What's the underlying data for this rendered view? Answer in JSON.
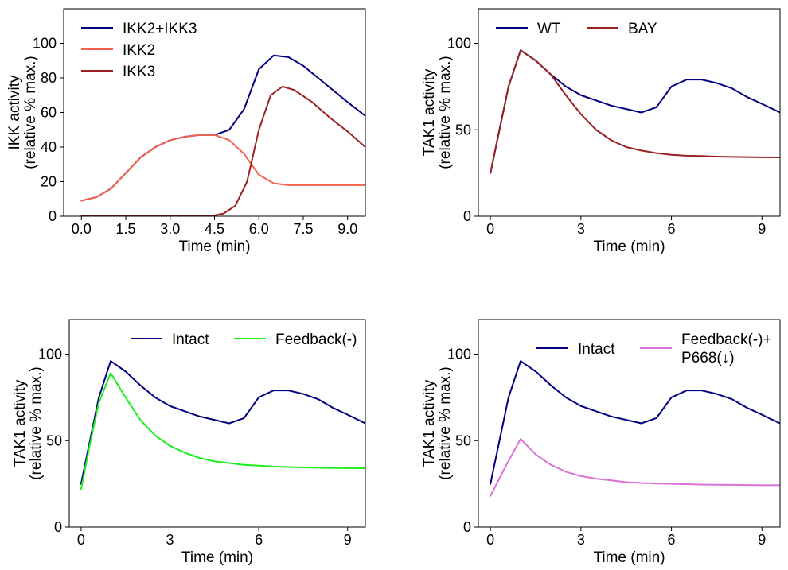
{
  "chart_data": [
    {
      "type": "line",
      "xlabel": "Time (min)",
      "ylabel": [
        "IKK activity",
        "(relative % max.)"
      ],
      "xlim": [
        -0.6,
        9.6
      ],
      "ylim": [
        0,
        120
      ],
      "xticks": [
        0,
        1.5,
        3,
        4.5,
        6,
        7.5,
        9
      ],
      "xtick_labels": [
        "0.0",
        "1.5",
        "3.0",
        "4.5",
        "6.0",
        "7.5",
        "9.0"
      ],
      "yticks": [
        0,
        20,
        40,
        60,
        80,
        100
      ],
      "ytick_labels": [
        "0",
        "20",
        "40",
        "60",
        "80",
        "100"
      ],
      "legend_position": "top-left",
      "legend_layout": "column",
      "series": [
        {
          "name": "IKK2+IKK3",
          "color": "#000080",
          "x": [
            0,
            0.5,
            1,
            1.5,
            2,
            2.5,
            3,
            3.5,
            4,
            4.5,
            5,
            5.5,
            6,
            6.5,
            7,
            7.5,
            8,
            8.5,
            9,
            9.6
          ],
          "y": [
            9,
            11,
            16,
            25,
            34,
            40,
            44,
            46,
            47,
            47,
            50,
            62,
            85,
            93,
            92,
            87,
            80,
            73,
            66,
            58
          ]
        },
        {
          "name": "IKK2",
          "color": "#f4604a",
          "x": [
            0,
            0.5,
            1,
            1.5,
            2,
            2.5,
            3,
            3.5,
            4,
            4.5,
            5,
            5.5,
            6,
            6.5,
            7,
            7.5,
            8,
            8.5,
            9,
            9.6
          ],
          "y": [
            9,
            11,
            16,
            25,
            34,
            40,
            44,
            46,
            47,
            47,
            44,
            36,
            24,
            19,
            18,
            18,
            18,
            18,
            18,
            18
          ]
        },
        {
          "name": "IKK3",
          "color": "#9b2222",
          "x": [
            0,
            0.5,
            1,
            1.5,
            2,
            2.5,
            3,
            3.5,
            4,
            4.5,
            4.8,
            5.2,
            5.6,
            6,
            6.4,
            6.8,
            7.2,
            7.8,
            8.4,
            9,
            9.6
          ],
          "y": [
            0,
            0,
            0,
            0,
            0,
            0,
            0,
            0,
            0,
            0.5,
            1.5,
            6,
            20,
            50,
            70,
            75,
            73,
            66,
            57,
            49,
            40
          ]
        }
      ]
    },
    {
      "type": "line",
      "xlabel": "Time (min)",
      "ylabel": [
        "TAK1 activity",
        "(relative % max.)"
      ],
      "xlim": [
        -0.4,
        9.6
      ],
      "ylim": [
        0,
        120
      ],
      "xticks": [
        0,
        3,
        6,
        9
      ],
      "xtick_labels": [
        "0",
        "3",
        "6",
        "9"
      ],
      "yticks": [
        0,
        50,
        100
      ],
      "ytick_labels": [
        "0",
        "50",
        "100"
      ],
      "legend_position": "top-left",
      "legend_layout": "row",
      "series": [
        {
          "name": "WT",
          "color": "#000080",
          "x": [
            0,
            0.3,
            0.6,
            1,
            1.5,
            2,
            2.5,
            3,
            3.5,
            4,
            4.5,
            5,
            5.5,
            6,
            6.5,
            7,
            7.5,
            8,
            8.5,
            9,
            9.6
          ],
          "y": [
            25,
            50,
            75,
            96,
            90,
            82,
            75,
            70,
            67,
            64,
            62,
            60,
            63,
            75,
            79,
            79,
            77,
            74,
            69,
            65,
            60
          ]
        },
        {
          "name": "BAY",
          "color": "#9b2222",
          "x": [
            0,
            0.3,
            0.6,
            1,
            1.5,
            2,
            2.5,
            3,
            3.5,
            4,
            4.5,
            5,
            5.5,
            6,
            6.5,
            7,
            7.5,
            8,
            8.5,
            9,
            9.6
          ],
          "y": [
            25,
            50,
            75,
            96,
            90,
            82,
            70,
            59,
            50,
            44,
            40,
            38,
            36.5,
            35.5,
            35,
            34.8,
            34.5,
            34.3,
            34.2,
            34.1,
            34
          ]
        }
      ]
    },
    {
      "type": "line",
      "xlabel": "Time (min)",
      "ylabel": [
        "TAK1 activity",
        "(relative % max.)"
      ],
      "xlim": [
        -0.4,
        9.6
      ],
      "ylim": [
        0,
        120
      ],
      "xticks": [
        0,
        3,
        6,
        9
      ],
      "xtick_labels": [
        "0",
        "3",
        "6",
        "9"
      ],
      "yticks": [
        0,
        50,
        100
      ],
      "ytick_labels": [
        "0",
        "50",
        "100"
      ],
      "legend_position": "top-right",
      "legend_layout": "row",
      "series": [
        {
          "name": "Intact",
          "color": "#000080",
          "x": [
            0,
            0.3,
            0.6,
            1,
            1.5,
            2,
            2.5,
            3,
            3.5,
            4,
            4.5,
            5,
            5.5,
            6,
            6.5,
            7,
            7.5,
            8,
            8.5,
            9,
            9.6
          ],
          "y": [
            25,
            50,
            75,
            96,
            90,
            82,
            75,
            70,
            67,
            64,
            62,
            60,
            63,
            75,
            79,
            79,
            77,
            74,
            69,
            65,
            60
          ]
        },
        {
          "name": "Feedback(-)",
          "color": "#1aef1a",
          "x": [
            0,
            0.3,
            0.6,
            1,
            1.5,
            2,
            2.5,
            3,
            3.5,
            4,
            4.5,
            5,
            5.5,
            6,
            6.5,
            7,
            7.5,
            8,
            8.5,
            9,
            9.6
          ],
          "y": [
            22,
            48,
            72,
            89,
            75,
            62,
            53,
            47,
            43,
            40,
            38,
            37,
            36,
            35.5,
            35,
            34.7,
            34.5,
            34.3,
            34.2,
            34.1,
            34
          ]
        }
      ]
    },
    {
      "type": "line",
      "xlabel": "Time (min)",
      "ylabel": [
        "TAK1 activity",
        "(relative % max.)"
      ],
      "xlim": [
        -0.4,
        9.6
      ],
      "ylim": [
        0,
        120
      ],
      "xticks": [
        0,
        3,
        6,
        9
      ],
      "xtick_labels": [
        "0",
        "3",
        "6",
        "9"
      ],
      "yticks": [
        0,
        50,
        100
      ],
      "ytick_labels": [
        "0",
        "50",
        "100"
      ],
      "legend_position": "top-right",
      "legend_layout": "row",
      "series": [
        {
          "name": "Intact",
          "color": "#000080",
          "x": [
            0,
            0.3,
            0.6,
            1,
            1.5,
            2,
            2.5,
            3,
            3.5,
            4,
            4.5,
            5,
            5.5,
            6,
            6.5,
            7,
            7.5,
            8,
            8.5,
            9,
            9.6
          ],
          "y": [
            25,
            50,
            75,
            96,
            90,
            82,
            75,
            70,
            67,
            64,
            62,
            60,
            63,
            75,
            79,
            79,
            77,
            74,
            69,
            65,
            60
          ]
        },
        {
          "name": [
            "Feedback(-)+",
            "P668(↓)"
          ],
          "color": "#db70db",
          "x": [
            0,
            0.5,
            1,
            1.5,
            2,
            2.5,
            3,
            3.5,
            4,
            4.5,
            5,
            5.5,
            6,
            6.5,
            7,
            7.5,
            8,
            8.5,
            9,
            9.6
          ],
          "y": [
            18,
            35,
            51,
            42,
            36,
            32,
            29.5,
            28,
            27,
            26,
            25.5,
            25.2,
            25,
            24.8,
            24.6,
            24.5,
            24.4,
            24.3,
            24.2,
            24.2
          ]
        }
      ]
    }
  ]
}
